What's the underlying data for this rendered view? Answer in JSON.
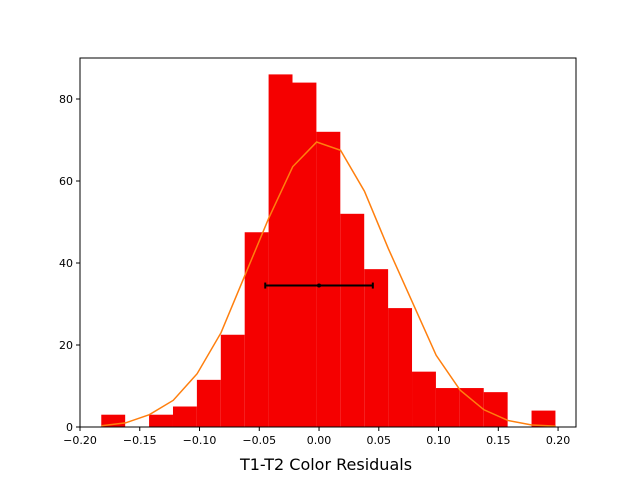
{
  "chart_data": {
    "type": "bar",
    "xlabel": "T1-T2 Color Residuals",
    "ylabel": "",
    "xlim": [
      -0.2,
      0.215
    ],
    "ylim": [
      0,
      90
    ],
    "x_ticks": [
      -0.2,
      -0.15,
      -0.1,
      -0.05,
      0.0,
      0.05,
      0.1,
      0.15,
      0.2
    ],
    "x_tick_labels": [
      "−0.20",
      "−0.15",
      "−0.10",
      "−0.05",
      "0.00",
      "0.05",
      "0.10",
      "0.15",
      "0.20"
    ],
    "y_ticks": [
      0,
      20,
      40,
      60,
      80
    ],
    "y_tick_labels": [
      "0",
      "20",
      "40",
      "60",
      "80"
    ],
    "grid": false,
    "histogram": {
      "color": "#f50000",
      "bin_edges": [
        -0.1822,
        -0.1622,
        -0.1422,
        -0.1222,
        -0.1022,
        -0.0822,
        -0.0622,
        -0.0422,
        -0.0222,
        -0.0022,
        0.0178,
        0.0378,
        0.0578,
        0.0778,
        0.0978,
        0.1178,
        0.1378,
        0.1578,
        0.1778,
        0.1978
      ],
      "counts": [
        3,
        0,
        3,
        5,
        11.5,
        22.5,
        47.5,
        86,
        84,
        72,
        52,
        38.5,
        29,
        13.5,
        9.5,
        9.5,
        8.5,
        0,
        4
      ]
    },
    "curve": {
      "color": "#ff7f0e",
      "x": [
        -0.182,
        -0.162,
        -0.142,
        -0.122,
        -0.102,
        -0.082,
        -0.062,
        -0.042,
        -0.022,
        -0.002,
        0.018,
        0.038,
        0.058,
        0.078,
        0.098,
        0.118,
        0.138,
        0.158,
        0.178,
        0.198
      ],
      "y": [
        0.3,
        1.0,
        3.0,
        6.5,
        13.0,
        23.0,
        37.0,
        51.0,
        63.5,
        69.5,
        67.5,
        57.5,
        43.5,
        30.5,
        17.5,
        9.0,
        4.2,
        1.6,
        0.5,
        0.2
      ]
    },
    "errorbar": {
      "color": "#000000",
      "center": 0.0,
      "y": 34.5,
      "xmin": -0.045,
      "xmax": 0.045
    }
  }
}
